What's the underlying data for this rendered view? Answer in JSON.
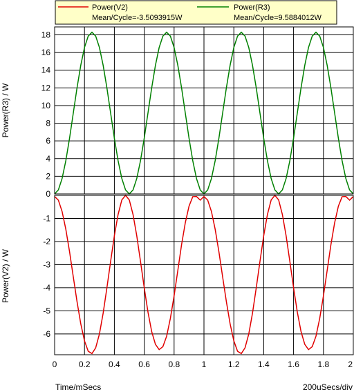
{
  "chart_data": [
    {
      "type": "line",
      "panel": "top",
      "ylabel": "Power(R3) / W",
      "ylim": [
        0,
        18.9
      ],
      "yticks": [
        0,
        2,
        4,
        6,
        8,
        10,
        12,
        14,
        16,
        18
      ],
      "xlim": [
        0,
        2
      ],
      "grid": true,
      "series": [
        {
          "name": "Power(R3)",
          "color": "#008000",
          "mean_label": "Mean/Cycle=9.5884012W",
          "x": [
            0,
            0.025,
            0.05,
            0.075,
            0.1,
            0.125,
            0.15,
            0.175,
            0.2,
            0.225,
            0.25,
            0.275,
            0.3,
            0.325,
            0.35,
            0.375,
            0.4,
            0.425,
            0.45,
            0.475,
            0.5,
            0.525,
            0.55,
            0.575,
            0.6,
            0.625,
            0.65,
            0.675,
            0.7,
            0.725,
            0.75,
            0.775,
            0.8,
            0.825,
            0.85,
            0.875,
            0.9,
            0.925,
            0.95,
            0.975,
            1.0,
            1.025,
            1.05,
            1.075,
            1.1,
            1.125,
            1.15,
            1.175,
            1.2,
            1.225,
            1.25,
            1.275,
            1.3,
            1.325,
            1.35,
            1.375,
            1.4,
            1.425,
            1.45,
            1.475,
            1.5,
            1.525,
            1.55,
            1.575,
            1.6,
            1.625,
            1.65,
            1.675,
            1.7,
            1.725,
            1.75,
            1.775,
            1.8,
            1.825,
            1.85,
            1.875,
            1.9,
            1.925,
            1.95,
            1.975,
            2.0
          ],
          "y": [
            0,
            0.45,
            1.74,
            3.76,
            6.3,
            9.15,
            12.0,
            14.55,
            16.57,
            17.86,
            18.3,
            17.86,
            16.57,
            14.55,
            12.0,
            9.15,
            6.3,
            3.76,
            1.74,
            0.45,
            0,
            0.45,
            1.74,
            3.76,
            6.3,
            9.15,
            12.0,
            14.55,
            16.57,
            17.86,
            18.3,
            17.86,
            16.57,
            14.55,
            12.0,
            9.15,
            6.3,
            3.76,
            1.74,
            0.45,
            0,
            0.45,
            1.74,
            3.76,
            6.3,
            9.15,
            12.0,
            14.55,
            16.57,
            17.86,
            18.3,
            17.86,
            16.57,
            14.55,
            12.0,
            9.15,
            6.3,
            3.76,
            1.74,
            0.45,
            0,
            0.45,
            1.74,
            3.76,
            6.3,
            9.15,
            12.0,
            14.55,
            16.57,
            17.86,
            18.3,
            17.86,
            16.57,
            14.55,
            12.0,
            9.15,
            6.3,
            3.76,
            1.74,
            0.45,
            0
          ]
        }
      ]
    },
    {
      "type": "line",
      "panel": "bottom",
      "ylabel": "Power(V2) / W",
      "ylim": [
        -6.9,
        0
      ],
      "yticks": [
        -1,
        -2,
        -3,
        -4,
        -5,
        -6
      ],
      "ytick_labels": [
        "-1",
        "-2",
        "-3",
        "-4",
        "-5",
        "-6"
      ],
      "xlim": [
        0,
        2
      ],
      "xticks": [
        0,
        0.2,
        0.4,
        0.6,
        0.8,
        1,
        1.2,
        1.4,
        1.6,
        1.8,
        2
      ],
      "xtick_labels": [
        "0",
        "0.2",
        "0.4",
        "0.6",
        "0.8",
        "1",
        "1.2",
        "1.4",
        "1.6",
        "1.8",
        "2"
      ],
      "xlabel": "Time/mSecs",
      "xscale_label": "200uSecs/div",
      "grid": true,
      "series": [
        {
          "name": "Power(V2)",
          "color": "#e00000",
          "mean_label": "Mean/Cycle=-3.5093915W",
          "x": [
            0,
            0.025,
            0.05,
            0.075,
            0.1,
            0.125,
            0.15,
            0.175,
            0.2,
            0.225,
            0.25,
            0.275,
            0.3,
            0.325,
            0.35,
            0.375,
            0.4,
            0.425,
            0.45,
            0.475,
            0.5,
            0.525,
            0.55,
            0.575,
            0.6,
            0.625,
            0.65,
            0.675,
            0.7,
            0.725,
            0.75,
            0.775,
            0.8,
            0.825,
            0.85,
            0.875,
            0.9,
            0.925,
            0.95,
            0.975,
            1.0,
            1.025,
            1.05,
            1.075,
            1.1,
            1.125,
            1.15,
            1.175,
            1.2,
            1.225,
            1.25,
            1.275,
            1.3,
            1.325,
            1.35,
            1.375,
            1.4,
            1.425,
            1.45,
            1.475,
            1.5,
            1.525,
            1.55,
            1.575,
            1.6,
            1.625,
            1.65,
            1.675,
            1.7,
            1.725,
            1.75,
            1.775,
            1.8,
            1.825,
            1.85,
            1.875,
            1.9,
            1.925,
            1.95,
            1.975,
            2.0
          ],
          "y": [
            -0.05,
            -0.21,
            -0.7,
            -1.47,
            -2.44,
            -3.53,
            -4.6,
            -5.56,
            -6.3,
            -6.75,
            -6.85,
            -6.6,
            -6.0,
            -5.1,
            -4.01,
            -2.86,
            -1.75,
            -0.83,
            -0.2,
            0.0,
            -0.2,
            -0.83,
            -1.75,
            -2.86,
            -4.0,
            -5.05,
            -5.9,
            -6.45,
            -6.68,
            -6.55,
            -6.1,
            -5.33,
            -4.35,
            -3.25,
            -2.14,
            -1.19,
            -0.47,
            -0.06,
            -0.05,
            -0.21,
            -0.05,
            -0.21,
            -0.7,
            -1.47,
            -2.44,
            -3.53,
            -4.6,
            -5.56,
            -6.3,
            -6.75,
            -6.85,
            -6.6,
            -6.0,
            -5.1,
            -4.01,
            -2.86,
            -1.75,
            -0.83,
            -0.2,
            0.0,
            -0.2,
            -0.83,
            -1.75,
            -2.86,
            -4.0,
            -5.05,
            -5.9,
            -6.45,
            -6.68,
            -6.55,
            -6.1,
            -5.33,
            -4.35,
            -3.25,
            -2.14,
            -1.19,
            -0.47,
            -0.06,
            -0.05,
            -0.21,
            -0.05
          ]
        }
      ]
    }
  ],
  "legend": {
    "placement": "top",
    "background": "#ffffc8",
    "items": [
      {
        "name": "Power(V2)",
        "mean": "Mean/Cycle=-3.5093915W",
        "color": "#e00000"
      },
      {
        "name": "Power(R3)",
        "mean": "Mean/Cycle=9.5884012W",
        "color": "#008000"
      }
    ]
  }
}
